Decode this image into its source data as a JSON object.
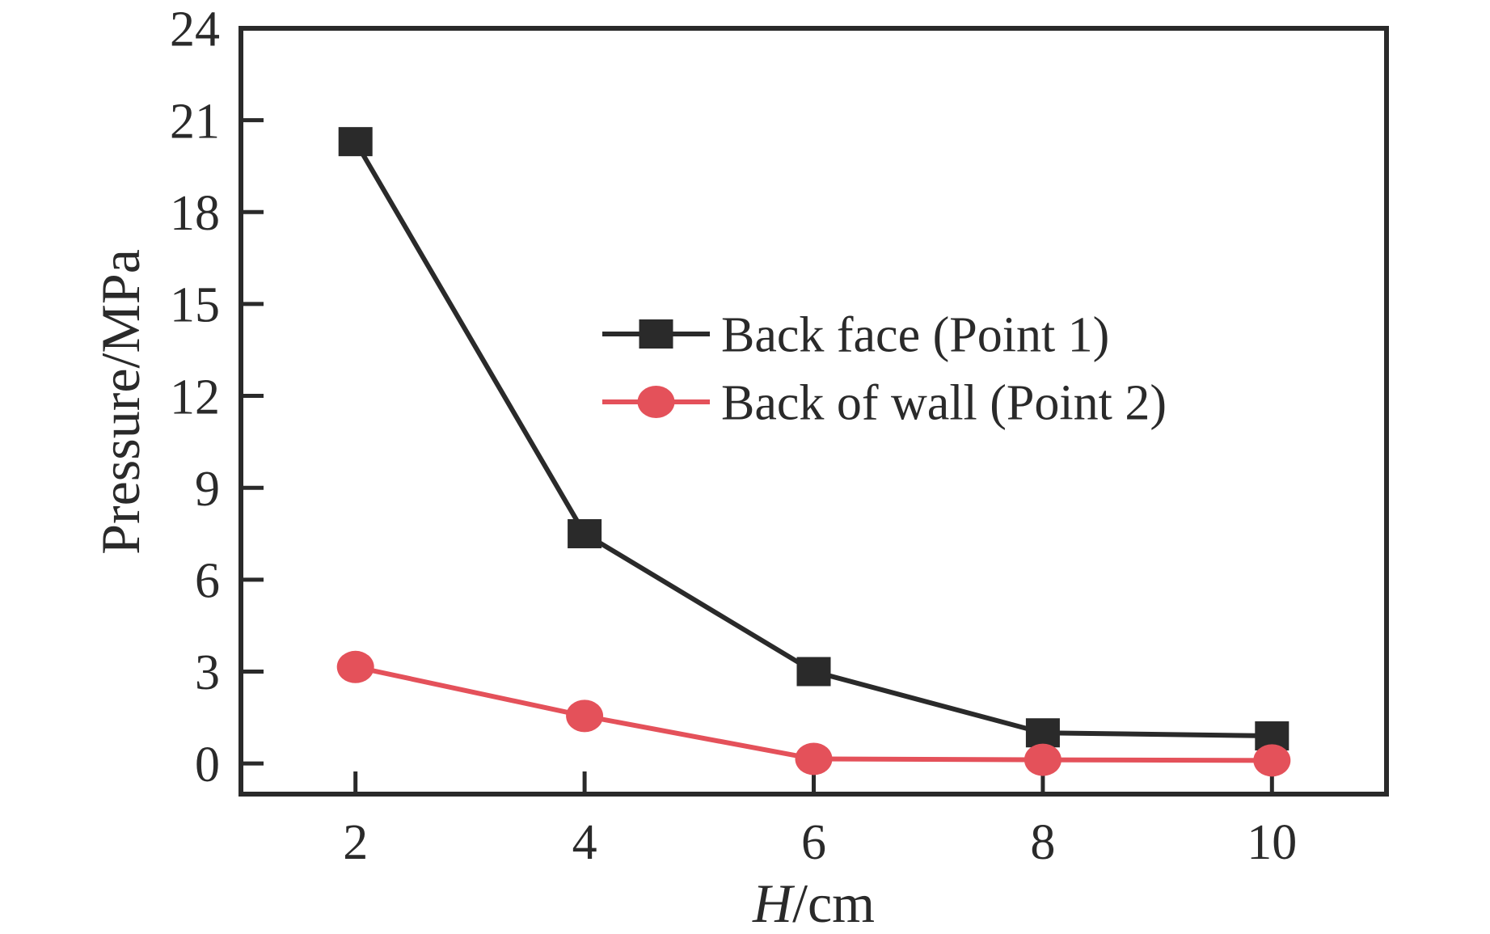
{
  "chart_data": {
    "type": "line",
    "title": "",
    "xlabel": "H/cm",
    "xlabel_parts": {
      "variable": "H",
      "unit": "/cm"
    },
    "ylabel": "Pressure/MPa",
    "x": [
      2,
      4,
      6,
      8,
      10
    ],
    "xlim": [
      1,
      11
    ],
    "ylim": [
      -1,
      24
    ],
    "xticks": [
      2,
      4,
      6,
      8,
      10
    ],
    "yticks": [
      0,
      3,
      6,
      9,
      12,
      15,
      18,
      21,
      24
    ],
    "grid": false,
    "legend_position": "inside-upper-right",
    "series": [
      {
        "name": "Back face (Point 1)",
        "color": "#2a2a2a",
        "marker": "square",
        "values": [
          20.3,
          7.5,
          3.0,
          1.0,
          0.9
        ]
      },
      {
        "name": "Back of wall (Point 2)",
        "color": "#e4515a",
        "marker": "circle",
        "values": [
          3.15,
          1.55,
          0.15,
          0.12,
          0.1
        ]
      }
    ],
    "colors": {
      "ink": "#2a2a2a",
      "accent_red": "#e4515a",
      "background": "#ffffff"
    }
  }
}
